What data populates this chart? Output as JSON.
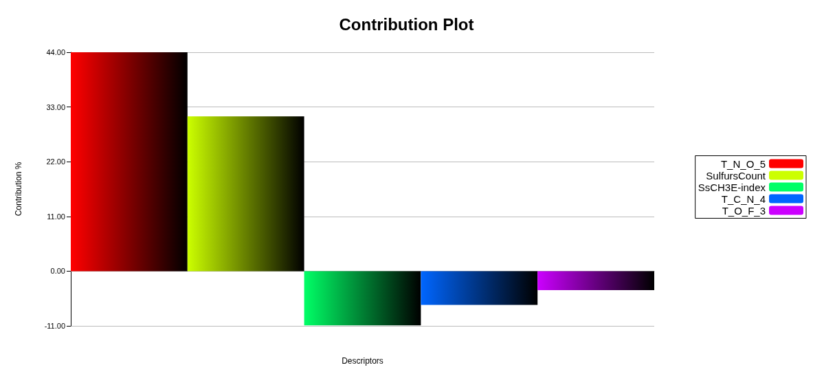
{
  "chart_data": {
    "type": "bar",
    "title": "Contribution Plot",
    "xlabel": "Descriptors",
    "ylabel": "Contribution %",
    "categories": [
      null
    ],
    "series": [
      {
        "name": "T_N_O_5",
        "color": "#ff0000",
        "values": [
          44
        ]
      },
      {
        "name": "SulfursCount",
        "color": "#ccff00",
        "values": [
          31.1
        ]
      },
      {
        "name": "SsCH3E-index",
        "color": "#00ff66",
        "values": [
          -10.9
        ]
      },
      {
        "name": "T_C_N_4",
        "color": "#0066ff",
        "values": [
          -6.8
        ]
      },
      {
        "name": "T_O_F_3",
        "color": "#cc00ff",
        "values": [
          -3.8
        ]
      }
    ],
    "ylim": [
      -11,
      44
    ],
    "yticks": [
      {
        "value": -11,
        "label": "-11.00"
      },
      {
        "value": 0,
        "label": "0.00"
      },
      {
        "value": 11,
        "label": "11.00"
      },
      {
        "value": 22,
        "label": "22.00"
      },
      {
        "value": 33,
        "label": "33.00"
      },
      {
        "value": 44,
        "label": "44.00"
      }
    ],
    "grid": "y",
    "legend": "right"
  }
}
